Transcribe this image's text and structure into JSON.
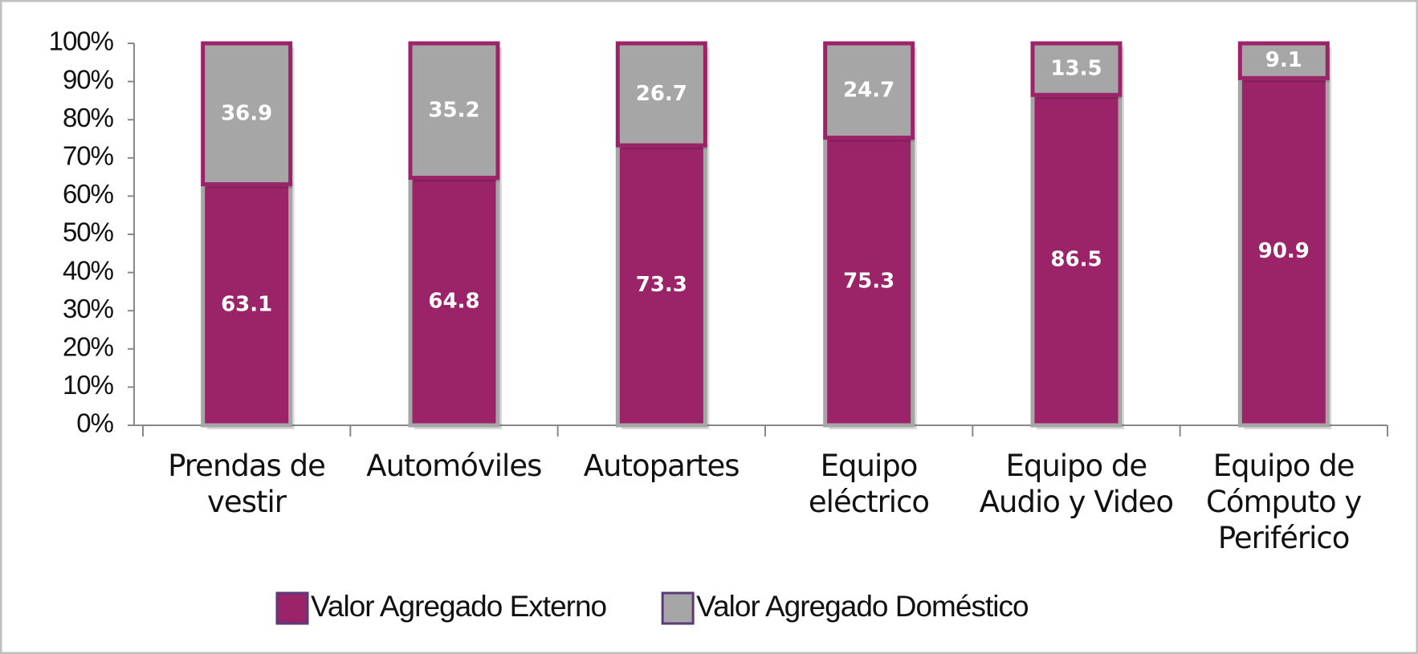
{
  "chart_data": {
    "type": "stacked_bar",
    "categories": [
      "Prendas de\nvestir",
      "Automóviles",
      "Autopartes",
      "Equipo\neléctrico",
      "Equipo de\nAudio y Video",
      "Equipo de\nCómputo y\nPeriférico"
    ],
    "series": [
      {
        "name": "Valor Agregado Externo",
        "color": "#9b2469",
        "edgecolor": "#a6a6a6",
        "values": [
          63.1,
          64.8,
          73.3,
          75.3,
          86.5,
          90.9
        ]
      },
      {
        "name": "Valor Agregado Doméstico",
        "color": "#a6a6a6",
        "edgecolor": "#9b2469",
        "values": [
          36.9,
          35.2,
          26.7,
          24.7,
          13.5,
          9.1
        ]
      }
    ],
    "ylim": [
      0,
      100
    ],
    "yticks": [
      {
        "value": 0,
        "label": "0%"
      },
      {
        "value": 10,
        "label": "10%"
      },
      {
        "value": 20,
        "label": "20%"
      },
      {
        "value": 30,
        "label": "30%"
      },
      {
        "value": 40,
        "label": "40%"
      },
      {
        "value": 50,
        "label": "50%"
      },
      {
        "value": 60,
        "label": "60%"
      },
      {
        "value": 70,
        "label": "70%"
      },
      {
        "value": 80,
        "label": "80%"
      },
      {
        "value": 90,
        "label": "90%"
      },
      {
        "value": 100,
        "label": "100%"
      }
    ],
    "legend": "bottom"
  }
}
